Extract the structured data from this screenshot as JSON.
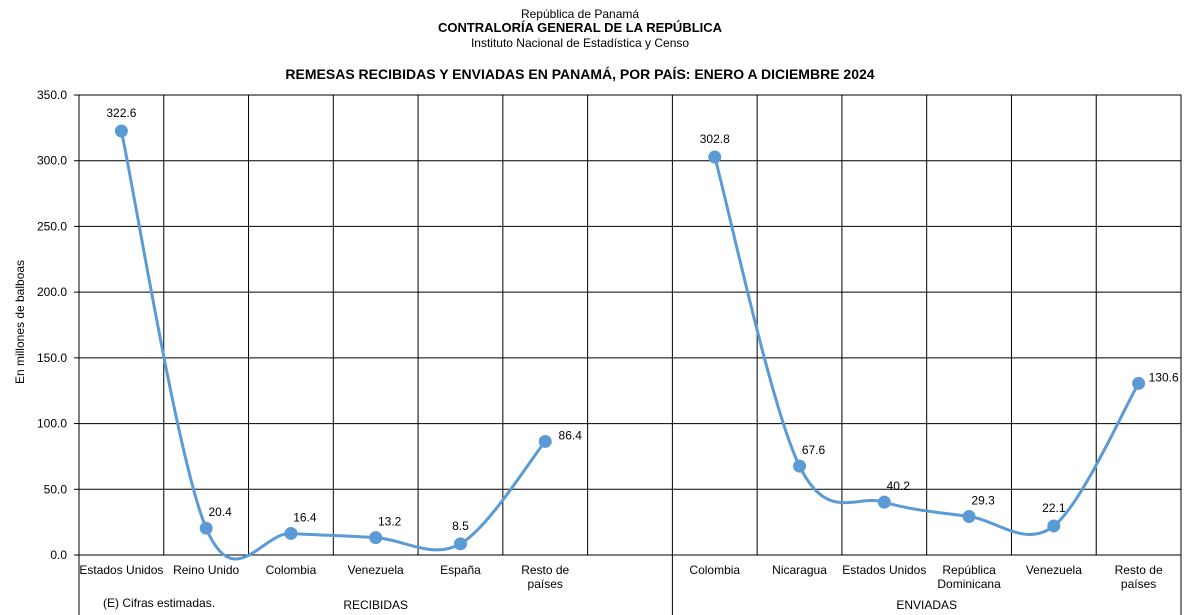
{
  "header": {
    "line1": "República de Panamá",
    "line2": "CONTRALORÍA GENERAL DE LA REPÚBLICA",
    "line3": "Instituto Nacional de Estadística y Censo"
  },
  "footnote": "(E) Cifras estimadas.",
  "chart_data": {
    "type": "line",
    "title": "REMESAS RECIBIDAS Y ENVIADAS EN PANAMÁ, POR PAÍS: ENERO A DICIEMBRE 2024",
    "ylabel": "En millones de balboas",
    "xlabel": "",
    "ylim": [
      0,
      350
    ],
    "yticks": [
      "0.0",
      "50.0",
      "100.0",
      "150.0",
      "200.0",
      "250.0",
      "300.0",
      "350.0"
    ],
    "grid": true,
    "line_color": "#5b9bd5",
    "groups": [
      {
        "name": "RECIBIDAS",
        "categories": [
          [
            "Estados Unidos"
          ],
          [
            "Reino Unido"
          ],
          [
            "Colombia"
          ],
          [
            "Venezuela"
          ],
          [
            "España"
          ],
          [
            "Resto de",
            "países"
          ],
          [
            ""
          ]
        ],
        "values": [
          322.6,
          20.4,
          16.4,
          13.2,
          8.5,
          86.4,
          null
        ],
        "labels": [
          "322.6",
          "20.4",
          "16.4",
          "13.2",
          "8.5",
          "86.4",
          ""
        ]
      },
      {
        "name": "ENVIADAS",
        "categories": [
          [
            "Colombia"
          ],
          [
            "Nicaragua"
          ],
          [
            "Estados Unidos"
          ],
          [
            "República",
            "Dominicana"
          ],
          [
            "Venezuela"
          ],
          [
            "Resto de",
            "países"
          ]
        ],
        "values": [
          302.8,
          67.6,
          40.2,
          29.3,
          22.1,
          130.6
        ],
        "labels": [
          "302.8",
          "67.6",
          "40.2",
          "29.3",
          "22.1",
          "130.6"
        ]
      }
    ]
  }
}
